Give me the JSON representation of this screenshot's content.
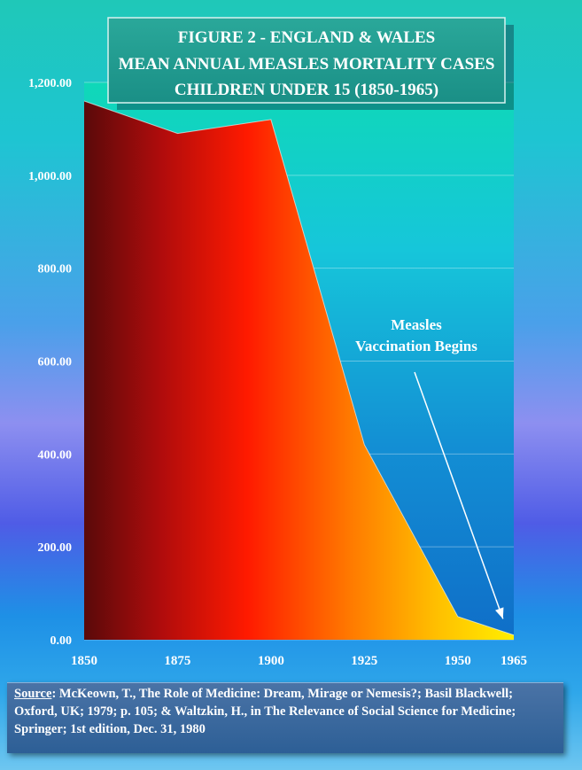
{
  "chart_data": {
    "type": "area",
    "title_lines": [
      "FIGURE 2  - ENGLAND & WALES",
      "MEAN ANNUAL MEASLES MORTALITY CASES",
      "CHILDREN UNDER 15 (1850-1965)"
    ],
    "x": [
      1850,
      1875,
      1900,
      1925,
      1950,
      1965
    ],
    "x_tick_labels": [
      "1850",
      "1875",
      "1900",
      "1925",
      "1950",
      "1965"
    ],
    "y_tick_labels": [
      "0.00",
      "200.00",
      "400.00",
      "600.00",
      "800.00",
      "1,000.00",
      "1,200.00"
    ],
    "y_ticks": [
      0,
      200,
      400,
      600,
      800,
      1000,
      1200
    ],
    "values": [
      1160,
      1090,
      1120,
      420,
      50,
      10
    ],
    "xlim": [
      1850,
      1965
    ],
    "ylim": [
      0,
      1200
    ],
    "grid": true,
    "annotation": {
      "lines": [
        "Measles",
        "Vaccination Begins"
      ],
      "points_to_x": 1964,
      "points_to_y": 45
    }
  },
  "source": {
    "label": "Source",
    "text": ":  McKeown, T., The Role of Medicine: Dream, Mirage or Nemesis?; Basil Blackwell; Oxford, UK; 1979; p. 105; & Waltzkin, H., in The Relevance of Social Science for Medicine; Springer; 1st edition, Dec. 31, 1980"
  },
  "colors": {
    "series_dark": "#5a0a0a",
    "series_mid": "#ff1a00",
    "series_light": "#ffee00",
    "arrow": "#ffffff",
    "text": "#ffffff"
  }
}
